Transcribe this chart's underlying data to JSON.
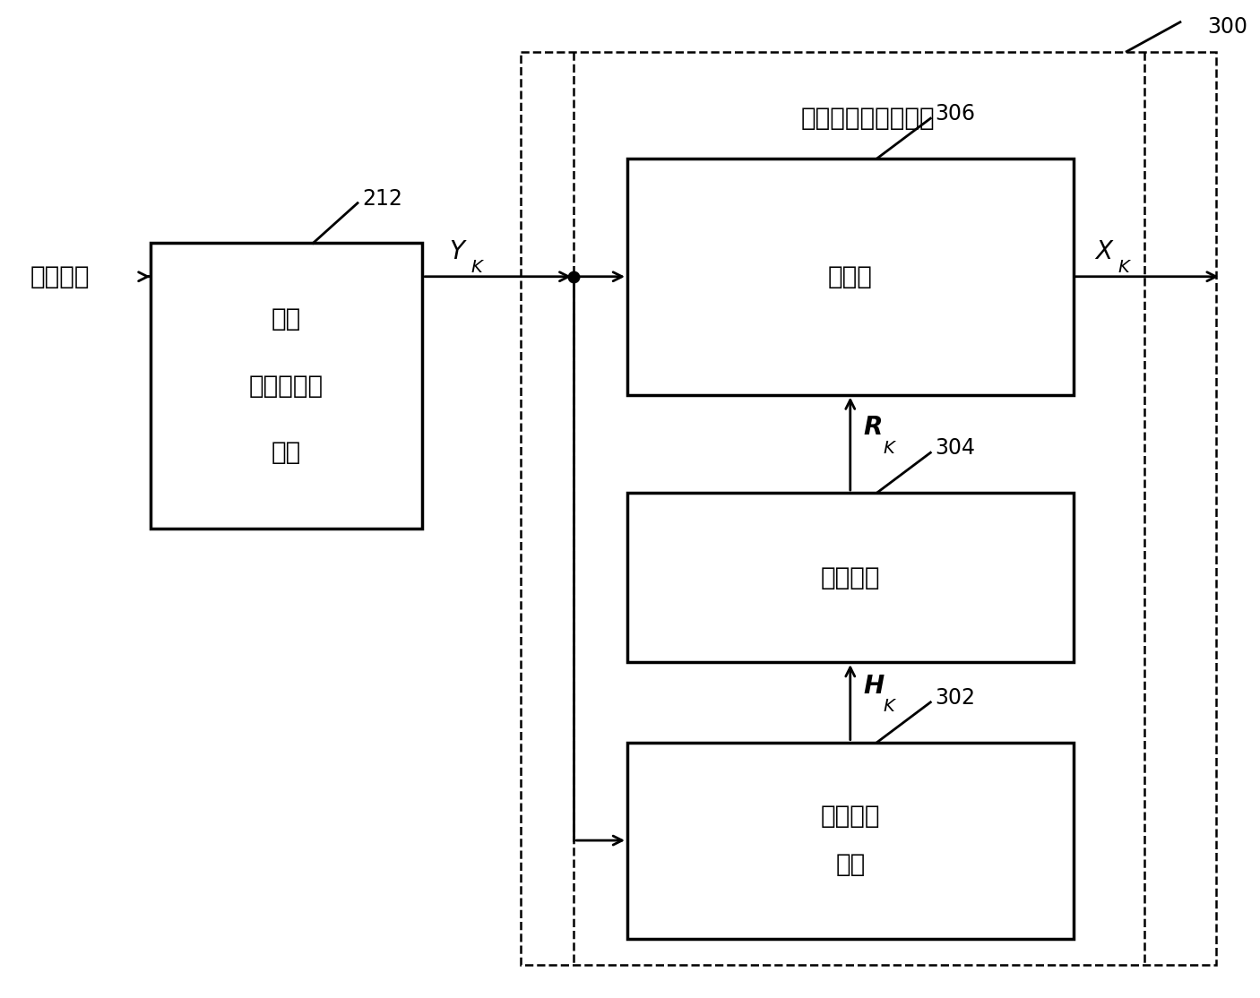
{
  "fig_width": 14.06,
  "fig_height": 11.14,
  "bg_color": "#ffffff",
  "title_text": "通道估算与均衡模块",
  "label_300": "300",
  "label_212": "212",
  "label_306": "306",
  "label_304": "304",
  "label_302": "302",
  "box_fft_lines": [
    "快速",
    "富利叶转换",
    "模块"
  ],
  "box_eq_text": "均衡器",
  "box_inv_text": "倒数模块",
  "box_ch_lines": [
    "通道",
    "估算模块"
  ],
  "signal_in": "信号样本",
  "label_yk": "Y",
  "label_yk_sub": "K",
  "label_xk": "X",
  "label_xk_sub": "K",
  "label_rk": "R",
  "label_rk_sub": "K",
  "label_hk": "H",
  "label_hk_sub": "K",
  "box_color": "#ffffff",
  "box_edge_color": "#000000",
  "line_color": "#000000",
  "dashed_box_color": "#000000",
  "text_color": "#000000",
  "font_size_block": 20,
  "font_size_label": 15,
  "font_size_signal": 20,
  "font_size_number": 17,
  "font_size_subscript": 14
}
